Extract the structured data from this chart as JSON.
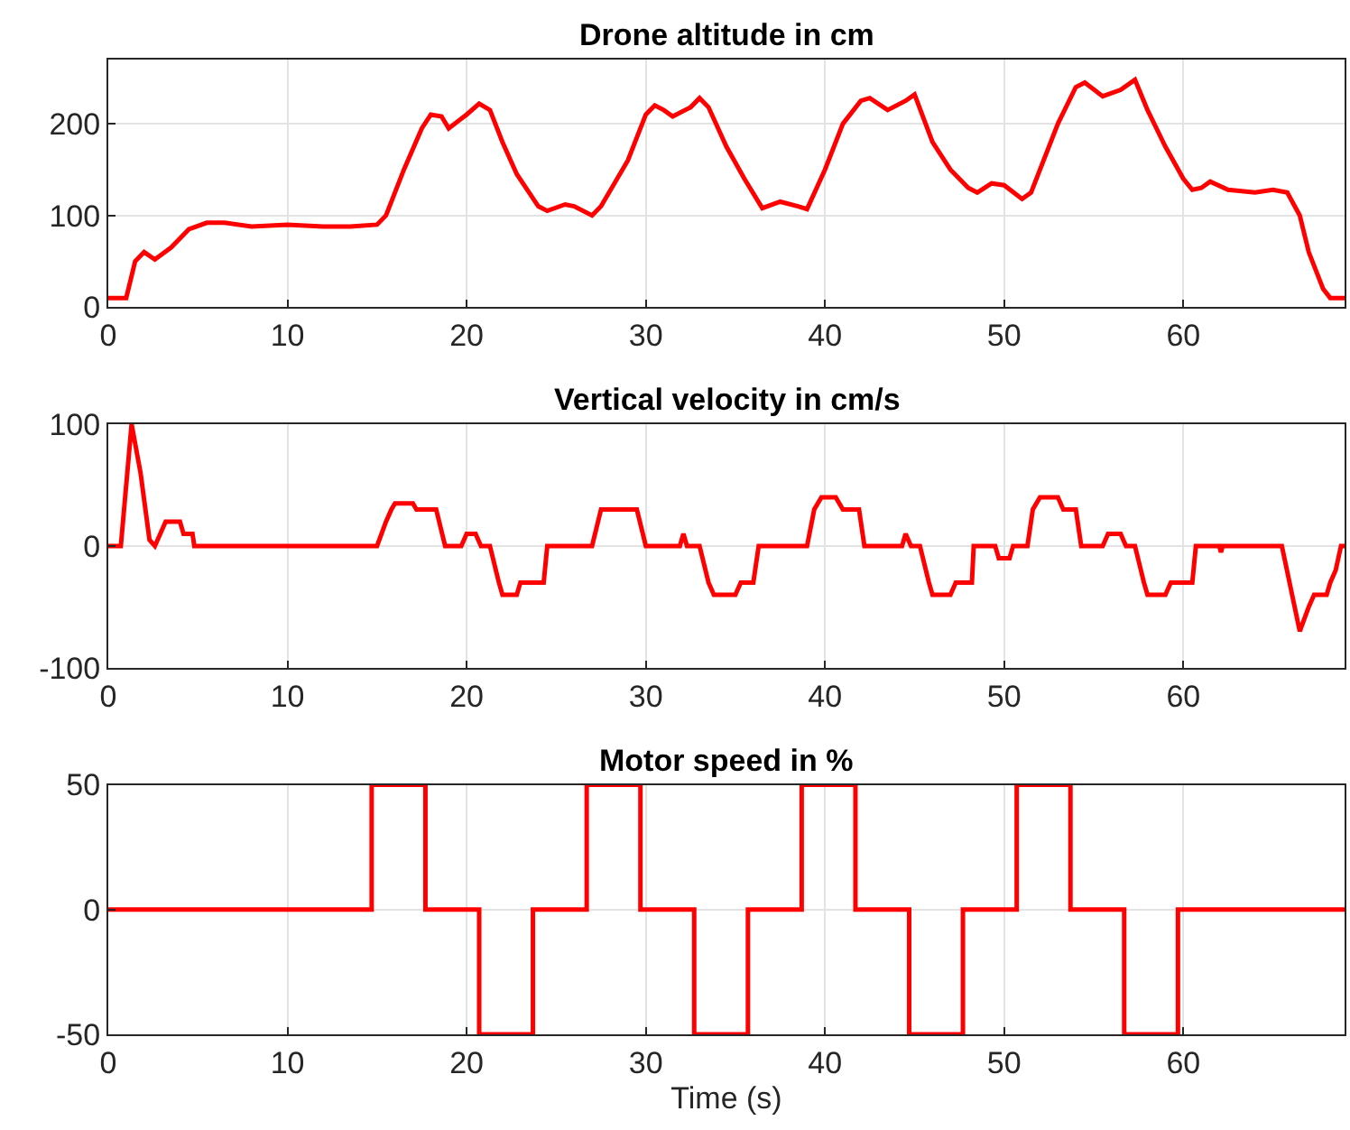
{
  "chart_data": [
    {
      "type": "line",
      "title": "Drone altitude in cm",
      "xlim": [
        0,
        69
      ],
      "xticks": [
        0,
        10,
        20,
        30,
        40,
        50,
        60
      ],
      "ylim": [
        0,
        270
      ],
      "yticks": [
        0,
        100,
        200
      ],
      "grid": true,
      "line_style": "solid",
      "marker": "none",
      "series": [
        {
          "color": "#ff0000",
          "x": [
            0,
            1,
            1.5,
            2,
            2.6,
            3.5,
            4.5,
            5.5,
            6.5,
            8,
            10,
            12,
            13.5,
            15,
            15.5,
            16.5,
            17.5,
            18,
            18.6,
            19,
            20,
            20.7,
            21.3,
            22,
            22.8,
            24,
            24.5,
            25.5,
            26,
            27,
            27.5,
            29,
            30,
            30.5,
            31,
            31.5,
            32.5,
            33,
            33.5,
            34.5,
            35.5,
            36.5,
            37.5,
            38.5,
            39,
            40,
            41,
            42,
            42.5,
            43.5,
            44.5,
            45,
            46,
            47,
            48,
            48.5,
            49.3,
            50,
            51,
            51.5,
            53,
            54,
            54.5,
            55.5,
            56.5,
            57.3,
            58,
            59,
            60,
            60.5,
            61,
            61.5,
            62.5,
            64,
            65,
            65.8,
            66.5,
            67,
            67.8,
            68.2,
            69
          ],
          "values": [
            10,
            10,
            50,
            60,
            52,
            65,
            85,
            92,
            92,
            88,
            90,
            88,
            88,
            90,
            100,
            150,
            195,
            210,
            208,
            195,
            210,
            222,
            215,
            180,
            145,
            110,
            105,
            112,
            110,
            100,
            110,
            160,
            210,
            220,
            215,
            208,
            218,
            228,
            218,
            175,
            140,
            108,
            115,
            110,
            107,
            150,
            200,
            225,
            228,
            215,
            225,
            232,
            180,
            150,
            130,
            125,
            135,
            133,
            118,
            125,
            200,
            240,
            245,
            230,
            237,
            248,
            215,
            175,
            140,
            128,
            130,
            137,
            128,
            125,
            128,
            125,
            100,
            60,
            20,
            10,
            10
          ]
        }
      ]
    },
    {
      "type": "line",
      "title": "Vertical velocity in cm/s",
      "xlim": [
        0,
        69
      ],
      "xticks": [
        0,
        10,
        20,
        30,
        40,
        50,
        60
      ],
      "ylim": [
        -100,
        100
      ],
      "yticks": [
        -100,
        0,
        100
      ],
      "grid": true,
      "line_style": "solid",
      "marker": "none",
      "series": [
        {
          "color": "#ff0000",
          "x": [
            0,
            0.7,
            1.3,
            1.8,
            2.3,
            2.6,
            3.2,
            4,
            4.2,
            4.7,
            4.8,
            15,
            15.5,
            15.8,
            16,
            17,
            17.2,
            18.3,
            18.8,
            19.7,
            20,
            20.5,
            20.8,
            21.3,
            21.8,
            22,
            22.8,
            23,
            24.3,
            24.5,
            27,
            27.5,
            29.5,
            30,
            31.9,
            32.1,
            32.3,
            33,
            33.5,
            33.8,
            35,
            35.3,
            36,
            36.3,
            39,
            39.4,
            39.8,
            40.6,
            41,
            41.9,
            42.2,
            44.3,
            44.5,
            44.8,
            45.3,
            45.8,
            46,
            47,
            47.3,
            48.2,
            48.3,
            49.5,
            49.7,
            50.3,
            50.5,
            51.3,
            51.6,
            52,
            53,
            53.3,
            54,
            54.3,
            55.5,
            55.8,
            56.5,
            56.8,
            57.3,
            57.8,
            58,
            59,
            59.3,
            60.5,
            60.7,
            62,
            62.1,
            62.2,
            65.5,
            66.5,
            67,
            67.3,
            68,
            68.2,
            68.5,
            68.8,
            69
          ],
          "values": [
            0,
            0,
            100,
            60,
            5,
            0,
            20,
            20,
            10,
            10,
            0,
            0,
            20,
            30,
            35,
            35,
            30,
            30,
            0,
            0,
            10,
            10,
            0,
            0,
            -30,
            -40,
            -40,
            -30,
            -30,
            0,
            0,
            30,
            30,
            0,
            0,
            10,
            0,
            0,
            -30,
            -40,
            -40,
            -30,
            -30,
            0,
            0,
            30,
            40,
            40,
            30,
            30,
            0,
            0,
            10,
            0,
            0,
            -30,
            -40,
            -40,
            -30,
            -30,
            0,
            0,
            -10,
            -10,
            0,
            0,
            30,
            40,
            40,
            30,
            30,
            0,
            0,
            10,
            10,
            0,
            0,
            -30,
            -40,
            -40,
            -30,
            -30,
            0,
            0,
            -5,
            0,
            0,
            -70,
            -50,
            -40,
            -40,
            -30,
            -20,
            0,
            0
          ]
        }
      ]
    },
    {
      "type": "line",
      "title": "Motor speed in %",
      "xlabel": "Time (s)",
      "xlim": [
        0,
        69
      ],
      "xticks": [
        0,
        10,
        20,
        30,
        40,
        50,
        60
      ],
      "ylim": [
        -50,
        50
      ],
      "yticks": [
        -50,
        0,
        50
      ],
      "grid": true,
      "line_style": "solid",
      "marker": "none",
      "series": [
        {
          "color": "#ff0000",
          "x": [
            0,
            14.7,
            14.7,
            17.7,
            17.7,
            20.7,
            20.7,
            23.7,
            23.7,
            26.7,
            26.7,
            29.7,
            29.7,
            32.7,
            32.7,
            35.7,
            35.7,
            38.7,
            38.7,
            41.7,
            41.7,
            44.7,
            44.7,
            47.7,
            47.7,
            50.7,
            50.7,
            53.7,
            53.7,
            56.7,
            56.7,
            59.7,
            59.7,
            69
          ],
          "values": [
            0,
            0,
            50,
            50,
            0,
            0,
            -50,
            -50,
            0,
            0,
            50,
            50,
            0,
            0,
            -50,
            -50,
            0,
            0,
            50,
            50,
            0,
            0,
            -50,
            -50,
            0,
            0,
            50,
            50,
            0,
            0,
            -50,
            -50,
            0,
            0
          ]
        }
      ]
    }
  ]
}
